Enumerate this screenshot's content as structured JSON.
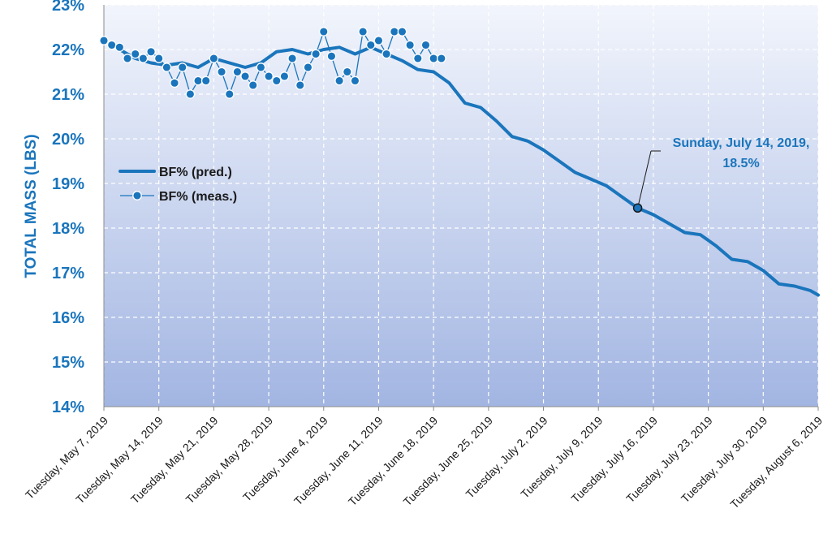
{
  "chart_data": {
    "type": "line",
    "ylabel": "TOTAL MASS (LBS)",
    "xlabel": "",
    "ylim": [
      14,
      23
    ],
    "xlim": [
      "2019-05-07",
      "2019-08-06"
    ],
    "y_ticks": [
      "14%",
      "15%",
      "16%",
      "17%",
      "18%",
      "19%",
      "20%",
      "21%",
      "22%",
      "23%"
    ],
    "x_ticks": [
      {
        "date": "2019-05-07",
        "label": "Tuesday, May 7, 2019"
      },
      {
        "date": "2019-05-14",
        "label": "Tuesday, May 14, 2019"
      },
      {
        "date": "2019-05-21",
        "label": "Tuesday, May 21, 2019"
      },
      {
        "date": "2019-05-28",
        "label": "Tuesday, May 28, 2019"
      },
      {
        "date": "2019-06-04",
        "label": "Tuesday, June 4, 2019"
      },
      {
        "date": "2019-06-11",
        "label": "Tuesday, June 11, 2019"
      },
      {
        "date": "2019-06-18",
        "label": "Tuesday, June 18, 2019"
      },
      {
        "date": "2019-06-25",
        "label": "Tuesday, June 25, 2019"
      },
      {
        "date": "2019-07-02",
        "label": "Tuesday, July 2, 2019"
      },
      {
        "date": "2019-07-09",
        "label": "Tuesday, July 9, 2019"
      },
      {
        "date": "2019-07-16",
        "label": "Tuesday, July 16, 2019"
      },
      {
        "date": "2019-07-23",
        "label": "Tuesday, July 23, 2019"
      },
      {
        "date": "2019-07-30",
        "label": "Tuesday, July 30, 2019"
      },
      {
        "date": "2019-08-06",
        "label": "Tuesday, August 6, 2019"
      }
    ],
    "grid": true,
    "legend_position": "middle-left",
    "series": [
      {
        "name": "BF% (pred.)",
        "color": "#1a75bc",
        "style": "line",
        "x": [
          "2019-05-07",
          "2019-05-09",
          "2019-05-11",
          "2019-05-13",
          "2019-05-15",
          "2019-05-17",
          "2019-05-19",
          "2019-05-21",
          "2019-05-23",
          "2019-05-25",
          "2019-05-27",
          "2019-05-29",
          "2019-05-31",
          "2019-06-02",
          "2019-06-04",
          "2019-06-06",
          "2019-06-08",
          "2019-06-10",
          "2019-06-12",
          "2019-06-14",
          "2019-06-16",
          "2019-06-18",
          "2019-06-20",
          "2019-06-22",
          "2019-06-24",
          "2019-06-26",
          "2019-06-28",
          "2019-06-30",
          "2019-07-02",
          "2019-07-04",
          "2019-07-06",
          "2019-07-08",
          "2019-07-10",
          "2019-07-12",
          "2019-07-14",
          "2019-07-16",
          "2019-07-18",
          "2019-07-20",
          "2019-07-22",
          "2019-07-24",
          "2019-07-26",
          "2019-07-28",
          "2019-07-30",
          "2019-08-01",
          "2019-08-03",
          "2019-08-05",
          "2019-08-06"
        ],
        "y": [
          22.2,
          22.0,
          21.8,
          21.7,
          21.65,
          21.7,
          21.6,
          21.8,
          21.7,
          21.6,
          21.7,
          21.95,
          22.0,
          21.9,
          22.0,
          22.05,
          21.9,
          22.05,
          21.9,
          21.75,
          21.55,
          21.5,
          21.25,
          20.8,
          20.7,
          20.4,
          20.05,
          19.95,
          19.75,
          19.5,
          19.25,
          19.1,
          18.95,
          18.7,
          18.45,
          18.3,
          18.1,
          17.9,
          17.85,
          17.6,
          17.3,
          17.25,
          17.05,
          16.75,
          16.7,
          16.6,
          16.5
        ]
      },
      {
        "name": "BF% (meas.)",
        "color": "#1a75bc",
        "style": "line-markers",
        "x": [
          "2019-05-07",
          "2019-05-08",
          "2019-05-09",
          "2019-05-10",
          "2019-05-11",
          "2019-05-12",
          "2019-05-13",
          "2019-05-14",
          "2019-05-15",
          "2019-05-16",
          "2019-05-17",
          "2019-05-18",
          "2019-05-19",
          "2019-05-20",
          "2019-05-21",
          "2019-05-22",
          "2019-05-23",
          "2019-05-24",
          "2019-05-25",
          "2019-05-26",
          "2019-05-27",
          "2019-05-28",
          "2019-05-29",
          "2019-05-30",
          "2019-05-31",
          "2019-06-01",
          "2019-06-02",
          "2019-06-03",
          "2019-06-04",
          "2019-06-05",
          "2019-06-06",
          "2019-06-07",
          "2019-06-08",
          "2019-06-09",
          "2019-06-10",
          "2019-06-11",
          "2019-06-12",
          "2019-06-13",
          "2019-06-14",
          "2019-06-15",
          "2019-06-16",
          "2019-06-17",
          "2019-06-18",
          "2019-06-19"
        ],
        "y": [
          22.2,
          22.1,
          22.05,
          21.8,
          21.9,
          21.8,
          21.95,
          21.8,
          21.6,
          21.25,
          21.6,
          21.0,
          21.3,
          21.3,
          21.8,
          21.5,
          21.0,
          21.5,
          21.4,
          21.2,
          21.6,
          21.4,
          21.3,
          21.4,
          21.8,
          21.2,
          21.6,
          21.9,
          22.4,
          21.85,
          21.3,
          21.5,
          21.3,
          22.4,
          22.1,
          22.2,
          21.9,
          22.4,
          22.4,
          22.1,
          21.8,
          22.1,
          21.8,
          21.8
        ]
      }
    ],
    "annotation": {
      "date": "2019-07-14",
      "value": 18.45,
      "line1": "Sunday, July 14, 2019,",
      "line2": "18.5%"
    }
  }
}
